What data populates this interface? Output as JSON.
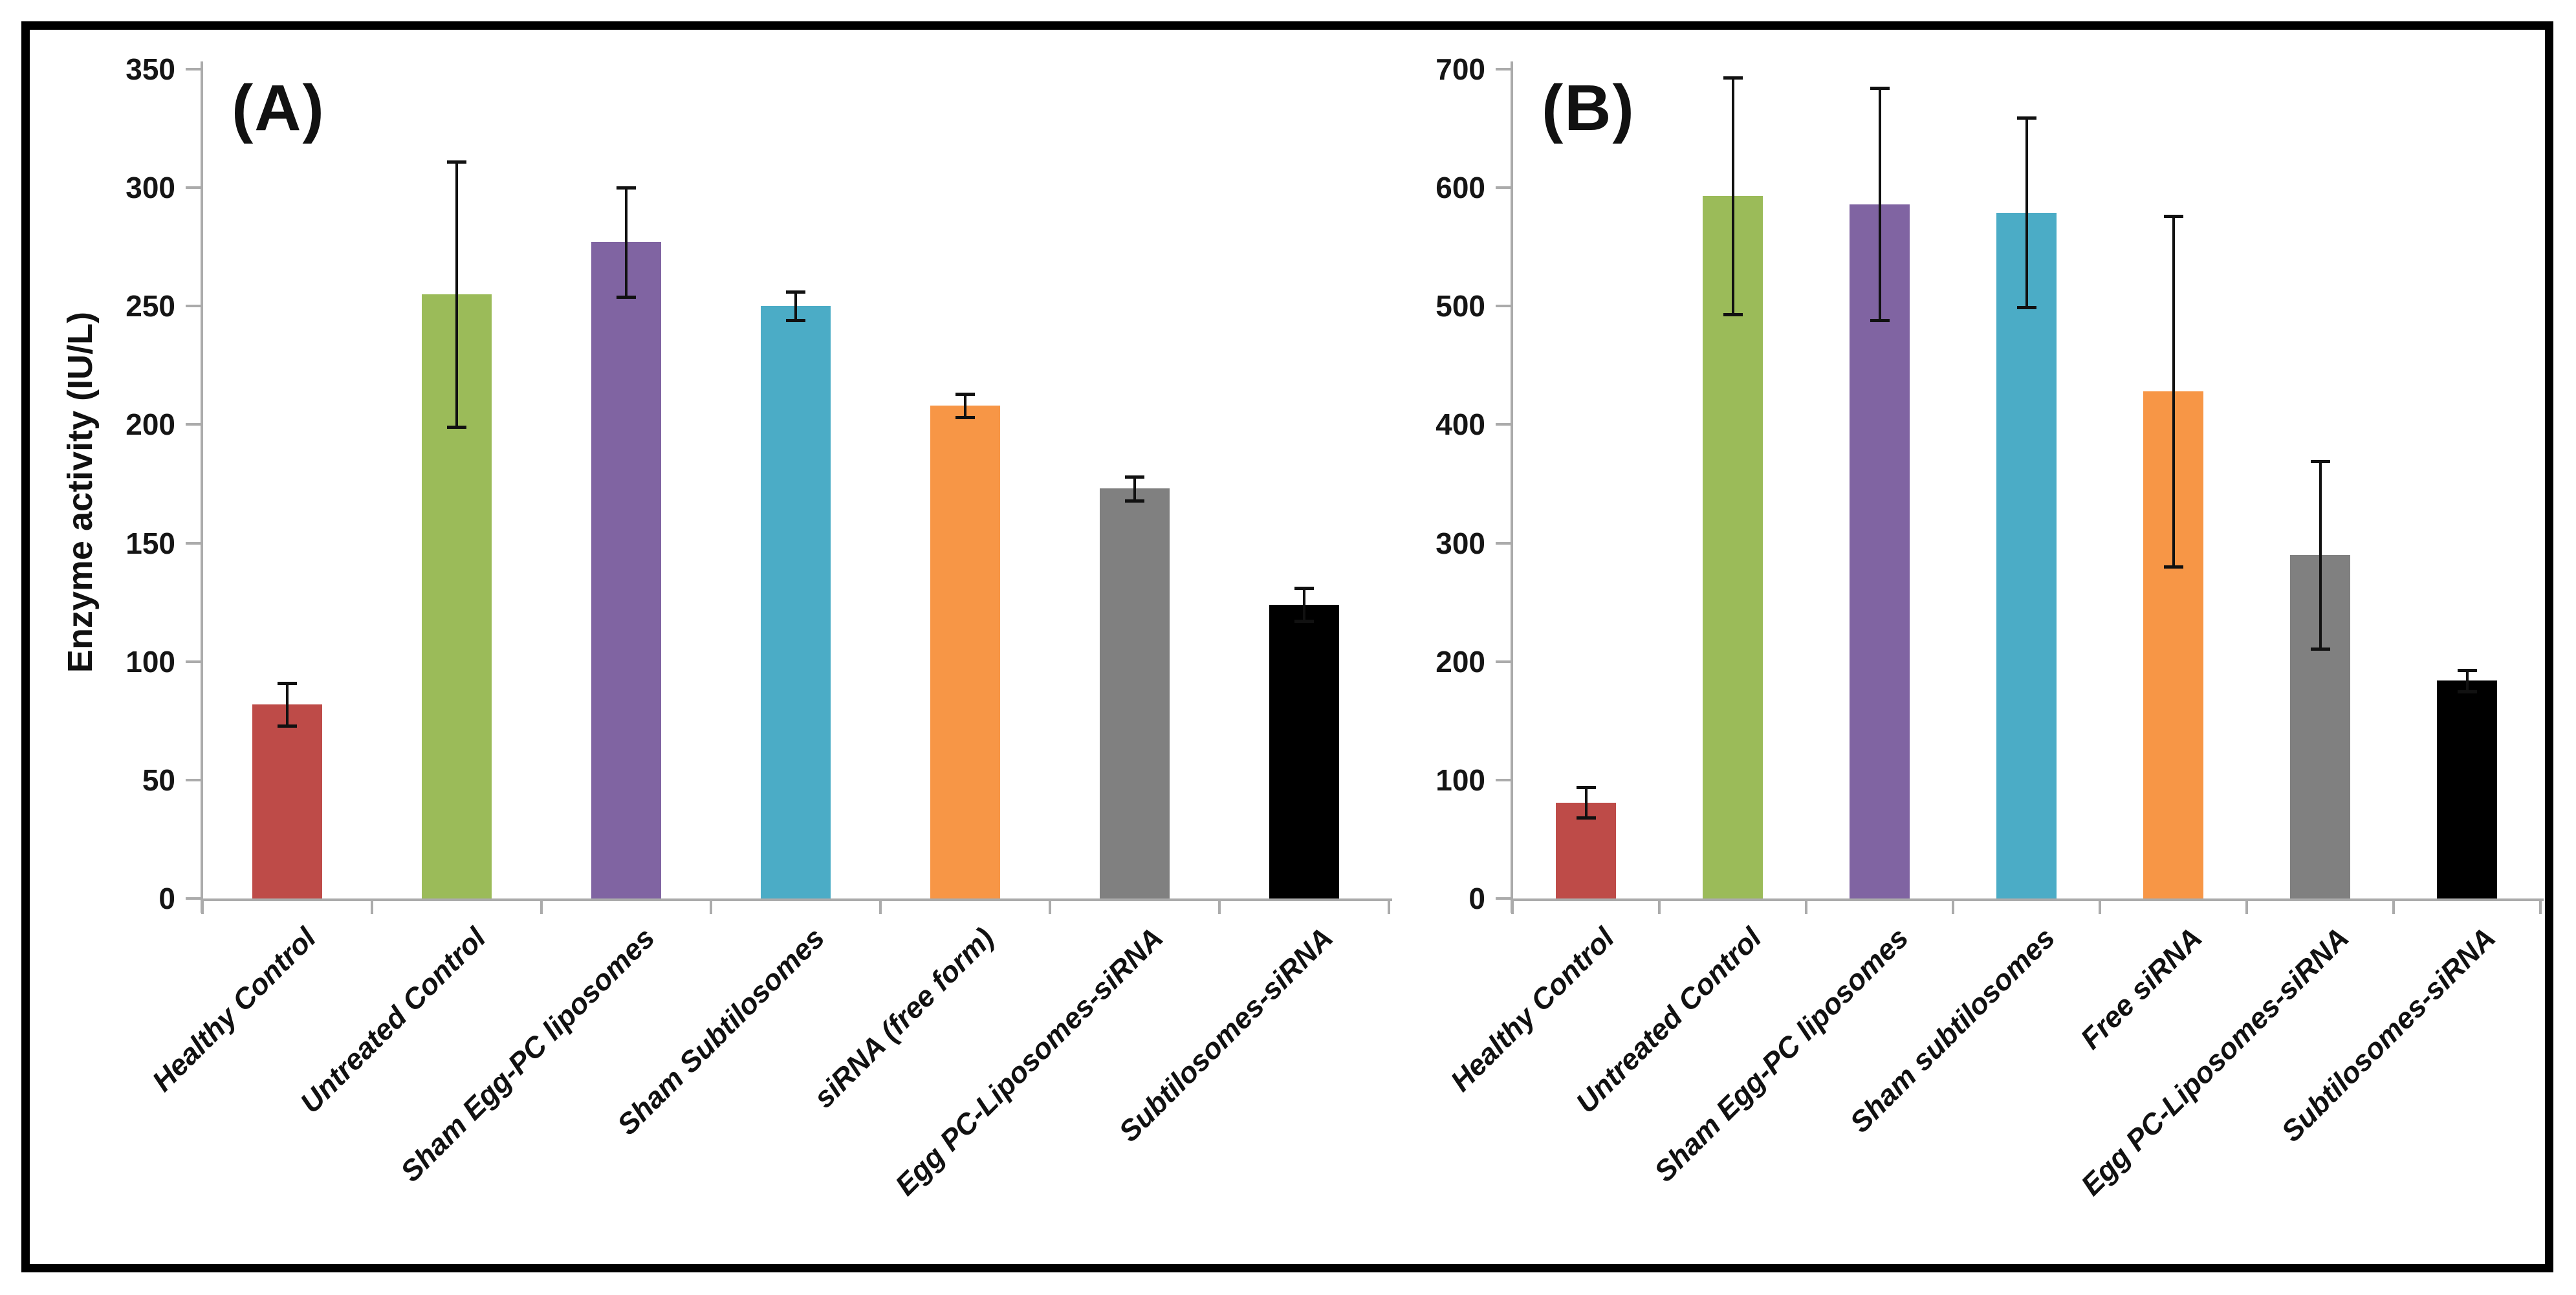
{
  "figure": {
    "kind": "two-panel bar chart with error bars",
    "background": "#ffffff",
    "border_color": "#000000",
    "axis_color": "#ababab",
    "bar_colors": [
      "#BE4B48",
      "#9BBB59",
      "#8064A2",
      "#4BACC6",
      "#F79646",
      "#808080",
      "#000000"
    ]
  },
  "chart_data": [
    {
      "type": "bar",
      "title": "(A)",
      "ylabel": "Enzyme activity (IU/L)",
      "xlabel": "",
      "ylim": [
        0,
        350
      ],
      "ytick_step": 50,
      "grid": false,
      "legend": false,
      "categories": [
        "Healthy Control",
        "Untreated Control",
        "Sham Egg-PC liposomes",
        "Sham Subtilosomes",
        "siRNA (free form)",
        "Egg PC-Liposomes-siRNA",
        "Subtilosomes-siRNA"
      ],
      "values": [
        82,
        255,
        277,
        250,
        208,
        173,
        124
      ],
      "errors": [
        9,
        56,
        23,
        6,
        5,
        5,
        7
      ],
      "bar_colors": [
        "#BE4B48",
        "#9BBB59",
        "#8064A2",
        "#4BACC6",
        "#F79646",
        "#808080",
        "#000000"
      ]
    },
    {
      "type": "bar",
      "title": "(B)",
      "ylabel": "",
      "xlabel": "",
      "ylim": [
        0,
        700
      ],
      "ytick_step": 100,
      "grid": false,
      "legend": false,
      "categories": [
        "Healthy Control",
        "Untreated Control",
        "Sham Egg-PC liposomes",
        "Sham subtilosomes",
        "Free siRNA",
        "Egg PC-Liposomes-siRNA",
        "Subtilosomes-siRNA"
      ],
      "values": [
        81,
        593,
        586,
        579,
        428,
        290,
        184
      ],
      "errors": [
        13,
        100,
        98,
        80,
        148,
        79,
        9
      ],
      "bar_colors": [
        "#BE4B48",
        "#9BBB59",
        "#8064A2",
        "#4BACC6",
        "#F79646",
        "#808080",
        "#000000"
      ]
    }
  ]
}
